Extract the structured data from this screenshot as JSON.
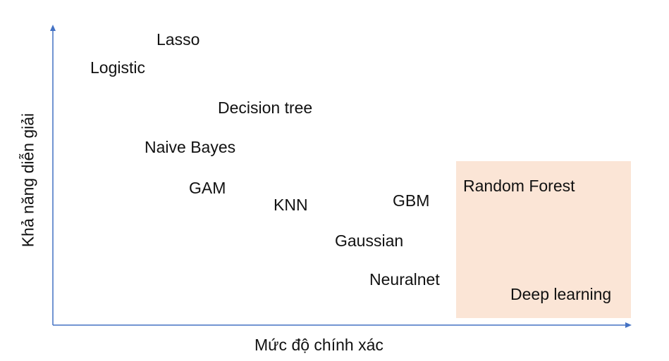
{
  "axes": {
    "x_title": "Mức độ chính xác",
    "y_title": "Khả năng diễn giải",
    "axis_color": "#4472c4"
  },
  "highlight": {
    "color": "#fbe5d6"
  },
  "models": [
    {
      "key": "lasso",
      "label": "Lasso"
    },
    {
      "key": "logistic",
      "label": "Logistic"
    },
    {
      "key": "decision-tree",
      "label": "Decision tree"
    },
    {
      "key": "naive-bayes",
      "label": "Naive Bayes"
    },
    {
      "key": "gam",
      "label": "GAM"
    },
    {
      "key": "knn",
      "label": "KNN"
    },
    {
      "key": "gbm",
      "label": "GBM"
    },
    {
      "key": "gaussian",
      "label": "Gaussian"
    },
    {
      "key": "neuralnet",
      "label": "Neuralnet"
    },
    {
      "key": "random-forest",
      "label": "Random Forest"
    },
    {
      "key": "deep-learning",
      "label": "Deep learning"
    }
  ]
}
